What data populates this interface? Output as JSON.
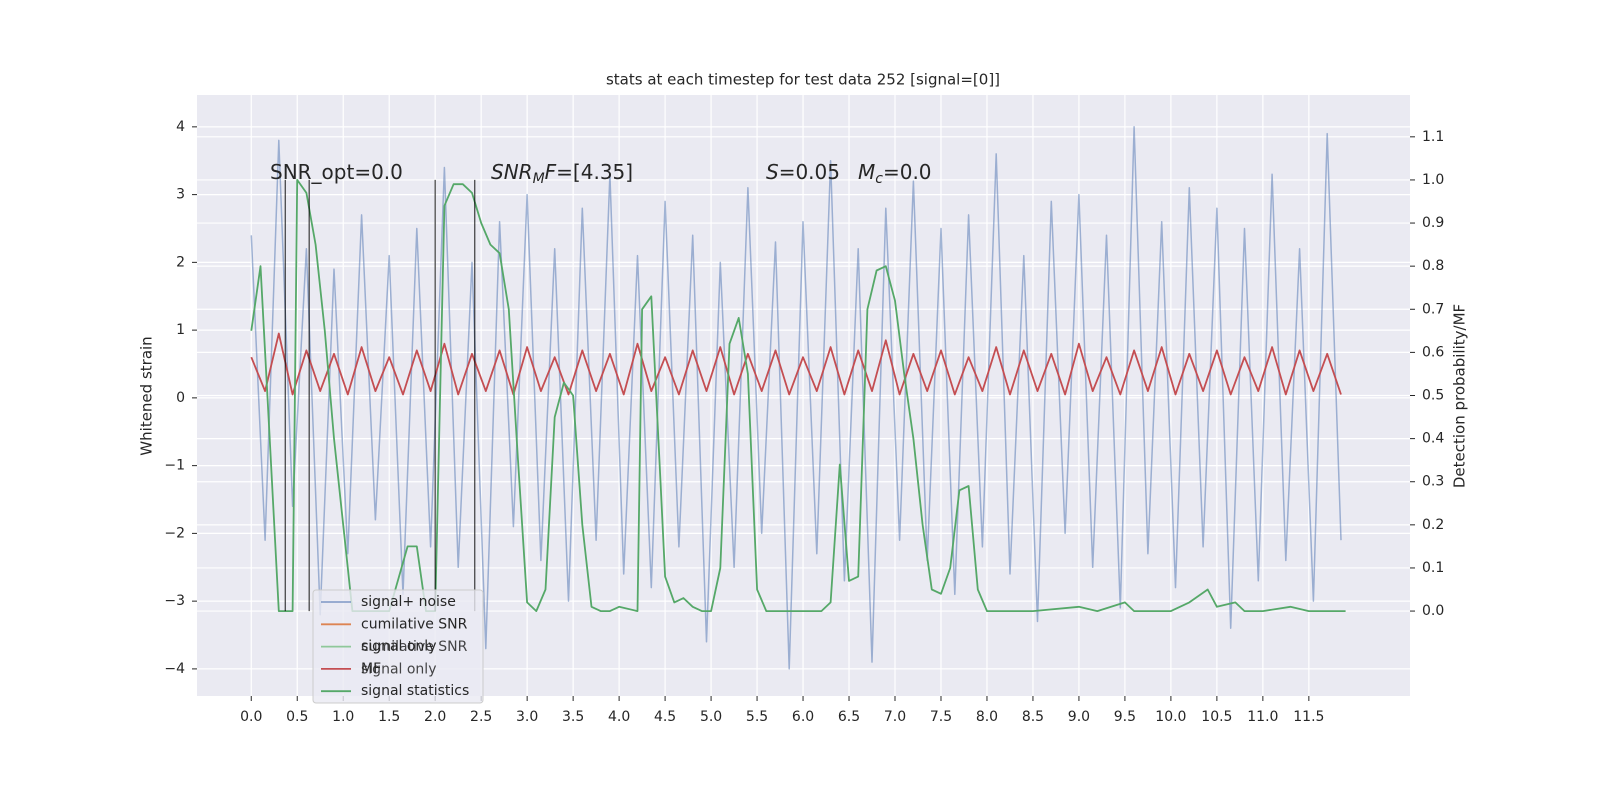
{
  "chart_data": {
    "type": "line",
    "title": "stats at each timestep for test data 252 [signal=[0]]",
    "y_label": "Whitened strain",
    "y2_label": "Detection probability/MF",
    "grid": true,
    "legend": "lower left",
    "xlim": [
      -0.59,
      12.6
    ],
    "ylim": [
      -4.4,
      4.47
    ],
    "y2lim": [
      -0.197,
      1.197
    ],
    "xticks": [
      {
        "value": 0,
        "label": "0.0"
      },
      {
        "value": 0.5,
        "label": "0.5"
      },
      {
        "value": 1,
        "label": "1.0"
      },
      {
        "value": 1.5,
        "label": "1.5"
      },
      {
        "value": 2,
        "label": "2.0"
      },
      {
        "value": 2.5,
        "label": "2.5"
      },
      {
        "value": 3,
        "label": "3.0"
      },
      {
        "value": 3.5,
        "label": "3.5"
      },
      {
        "value": 4,
        "label": "4.0"
      },
      {
        "value": 4.5,
        "label": "4.5"
      },
      {
        "value": 5,
        "label": "5.0"
      },
      {
        "value": 5.5,
        "label": "5.5"
      },
      {
        "value": 6,
        "label": "6.0"
      },
      {
        "value": 6.5,
        "label": "6.5"
      },
      {
        "value": 7,
        "label": "7.0"
      },
      {
        "value": 7.5,
        "label": "7.5"
      },
      {
        "value": 8,
        "label": "8.0"
      },
      {
        "value": 8.5,
        "label": "8.5"
      },
      {
        "value": 9,
        "label": "9.0"
      },
      {
        "value": 9.5,
        "label": "9.5"
      },
      {
        "value": 10,
        "label": "10.0"
      },
      {
        "value": 10.5,
        "label": "10.5"
      },
      {
        "value": 11,
        "label": "11.0"
      },
      {
        "value": 11.5,
        "label": "11.5"
      }
    ],
    "yticks": [
      {
        "value": -4,
        "label": "−4"
      },
      {
        "value": -3,
        "label": "−3"
      },
      {
        "value": -2,
        "label": "−2"
      },
      {
        "value": -1,
        "label": "−1"
      },
      0,
      1,
      2,
      3,
      4
    ],
    "y2ticks": [
      {
        "value": 0,
        "label": "0.0"
      },
      {
        "value": 0.1,
        "label": "0.1"
      },
      {
        "value": 0.2,
        "label": "0.2"
      },
      {
        "value": 0.3,
        "label": "0.3"
      },
      {
        "value": 0.4,
        "label": "0.4"
      },
      {
        "value": 0.5,
        "label": "0.5"
      },
      {
        "value": 0.6,
        "label": "0.6"
      },
      {
        "value": 0.7,
        "label": "0.7"
      },
      {
        "value": 0.8,
        "label": "0.8"
      },
      {
        "value": 0.9,
        "label": "0.9"
      },
      {
        "value": 1,
        "label": "1.0"
      },
      {
        "value": 1.1,
        "label": "1.1"
      }
    ],
    "vlines": [
      0.37,
      0.63,
      2.0,
      2.43
    ],
    "annotations": [
      [
        {
          "text": "SNR_opt=0.0",
          "style": "normal"
        }
      ],
      [
        {
          "text": "SNR",
          "style": "italic"
        },
        {
          "text": "M",
          "style": "sub"
        },
        {
          "text": "F",
          "style": "italic"
        },
        {
          "text": "=[4.35]",
          "style": "normal"
        }
      ],
      [
        {
          "text": "S",
          "style": "italic"
        },
        {
          "text": "=0.05",
          "style": "normal"
        }
      ],
      [
        {
          "text": "M",
          "style": "italic"
        },
        {
          "text": "c",
          "style": "sub"
        },
        {
          "text": "=0.0",
          "style": "normal"
        }
      ]
    ],
    "series": [
      {
        "name": "signal+ noise",
        "color": "#4c72b0",
        "x": [
          0,
          0.15,
          0.3,
          0.45,
          0.6,
          0.75,
          0.9,
          1.05,
          1.2,
          1.35,
          1.5,
          1.65,
          1.8,
          1.95,
          2.1,
          2.25,
          2.4,
          2.55,
          2.7,
          2.85,
          3,
          3.15,
          3.3,
          3.45,
          3.6,
          3.75,
          3.9,
          4.05,
          4.2,
          4.35,
          4.5,
          4.65,
          4.8,
          4.95,
          5.1,
          5.25,
          5.4,
          5.55,
          5.7,
          5.85,
          6,
          6.15,
          6.3,
          6.45,
          6.6,
          6.75,
          6.9,
          7.05,
          7.2,
          7.35,
          7.5,
          7.65,
          7.8,
          7.95,
          8.1,
          8.25,
          8.4,
          8.55,
          8.7,
          8.85,
          9,
          9.15,
          9.3,
          9.45,
          9.6,
          9.75,
          9.9,
          10.05,
          10.2,
          10.35,
          10.5,
          10.65,
          10.8,
          10.95,
          11.1,
          11.25,
          11.4,
          11.55,
          11.7,
          11.85
        ],
        "values": [
          2.4,
          -2.1,
          3.8,
          -1.6,
          2.2,
          -3.2,
          1.9,
          -2.3,
          2.7,
          -1.8,
          2.1,
          -2.9,
          2.5,
          -2.2,
          3.4,
          -2.5,
          2.0,
          -3.7,
          2.6,
          -1.9,
          3.0,
          -2.4,
          2.2,
          -3.0,
          2.8,
          -2.1,
          3.3,
          -2.6,
          2.1,
          -2.8,
          2.9,
          -2.2,
          2.4,
          -3.6,
          2.0,
          -2.5,
          3.1,
          -2.0,
          2.3,
          -4.0,
          2.6,
          -2.3,
          3.5,
          -2.7,
          2.2,
          -3.9,
          2.8,
          -2.1,
          3.2,
          -2.4,
          2.5,
          -2.9,
          2.7,
          -2.2,
          3.6,
          -2.6,
          2.1,
          -3.3,
          2.9,
          -2.0,
          3.0,
          -2.5,
          2.4,
          -3.1,
          4.0,
          -2.3,
          2.6,
          -2.8,
          3.1,
          -2.2,
          2.8,
          -3.4,
          2.5,
          -2.7,
          3.3,
          -2.4,
          2.2,
          -3.0,
          3.9,
          -2.1
        ]
      },
      {
        "name": "cumilative SNR",
        "color": "#dd8452",
        "x": [],
        "values": []
      },
      {
        "name": "signal only",
        "color": "#8fc89a",
        "x": [],
        "values": []
      },
      {
        "name": "MF",
        "color": "#c44e52",
        "x": [
          0,
          0.15,
          0.3,
          0.45,
          0.6,
          0.75,
          0.9,
          1.05,
          1.2,
          1.35,
          1.5,
          1.65,
          1.8,
          1.95,
          2.1,
          2.25,
          2.4,
          2.55,
          2.7,
          2.85,
          3,
          3.15,
          3.3,
          3.45,
          3.6,
          3.75,
          3.9,
          4.05,
          4.2,
          4.35,
          4.5,
          4.65,
          4.8,
          4.95,
          5.1,
          5.25,
          5.4,
          5.55,
          5.7,
          5.85,
          6,
          6.15,
          6.3,
          6.45,
          6.6,
          6.75,
          6.9,
          7.05,
          7.2,
          7.35,
          7.5,
          7.65,
          7.8,
          7.95,
          8.1,
          8.25,
          8.4,
          8.55,
          8.7,
          8.85,
          9,
          9.15,
          9.3,
          9.45,
          9.6,
          9.75,
          9.9,
          10.05,
          10.2,
          10.35,
          10.5,
          10.65,
          10.8,
          10.95,
          11.1,
          11.25,
          11.4,
          11.55,
          11.7,
          11.85
        ],
        "values": [
          0.6,
          0.1,
          0.95,
          0.05,
          0.7,
          0.1,
          0.65,
          0.05,
          0.75,
          0.1,
          0.6,
          0.05,
          0.7,
          0.1,
          0.8,
          0.05,
          0.65,
          0.1,
          0.7,
          0.05,
          0.75,
          0.1,
          0.6,
          0.05,
          0.7,
          0.1,
          0.65,
          0.05,
          0.8,
          0.1,
          0.6,
          0.05,
          0.7,
          0.1,
          0.75,
          0.05,
          0.65,
          0.1,
          0.7,
          0.05,
          0.6,
          0.1,
          0.75,
          0.05,
          0.7,
          0.1,
          0.85,
          0.05,
          0.65,
          0.1,
          0.7,
          0.05,
          0.6,
          0.1,
          0.75,
          0.05,
          0.7,
          0.1,
          0.65,
          0.05,
          0.8,
          0.1,
          0.6,
          0.05,
          0.7,
          0.1,
          0.75,
          0.05,
          0.65,
          0.1,
          0.7,
          0.05,
          0.6,
          0.1,
          0.75,
          0.05,
          0.7,
          0.1,
          0.65,
          0.05
        ]
      },
      {
        "name": "signal statistics",
        "color": "#55a868",
        "axis": "y2",
        "x": [
          0,
          0.1,
          0.2,
          0.3,
          0.45,
          0.5,
          0.6,
          0.7,
          0.8,
          0.9,
          1.0,
          1.1,
          1.5,
          1.7,
          1.8,
          1.9,
          2.0,
          2.1,
          2.2,
          2.3,
          2.4,
          2.5,
          2.6,
          2.7,
          2.8,
          2.9,
          3.0,
          3.1,
          3.2,
          3.3,
          3.4,
          3.5,
          3.6,
          3.7,
          3.8,
          3.9,
          4.0,
          4.2,
          4.25,
          4.35,
          4.45,
          4.5,
          4.6,
          4.7,
          4.8,
          4.9,
          5.0,
          5.1,
          5.2,
          5.3,
          5.4,
          5.5,
          5.6,
          6.0,
          6.2,
          6.3,
          6.4,
          6.5,
          6.6,
          6.7,
          6.8,
          6.9,
          7.0,
          7.1,
          7.2,
          7.3,
          7.4,
          7.5,
          7.6,
          7.7,
          7.8,
          7.9,
          8.0,
          8.5,
          9.0,
          9.2,
          9.5,
          9.6,
          10.0,
          10.2,
          10.4,
          10.5,
          10.7,
          10.8,
          11.0,
          11.3,
          11.5,
          11.9
        ],
        "values": [
          0.65,
          0.8,
          0.4,
          0.0,
          0.0,
          1.0,
          0.97,
          0.85,
          0.65,
          0.4,
          0.2,
          0.0,
          0.0,
          0.15,
          0.15,
          0.0,
          0.0,
          0.94,
          0.99,
          0.99,
          0.97,
          0.9,
          0.85,
          0.83,
          0.7,
          0.35,
          0.02,
          0.0,
          0.05,
          0.45,
          0.53,
          0.5,
          0.2,
          0.01,
          0.0,
          0.0,
          0.01,
          0.0,
          0.7,
          0.73,
          0.3,
          0.08,
          0.02,
          0.03,
          0.01,
          0.0,
          0.0,
          0.1,
          0.62,
          0.68,
          0.55,
          0.05,
          0.0,
          0.0,
          0.0,
          0.02,
          0.34,
          0.07,
          0.08,
          0.7,
          0.79,
          0.8,
          0.72,
          0.55,
          0.4,
          0.2,
          0.05,
          0.04,
          0.1,
          0.28,
          0.29,
          0.05,
          0.0,
          0.0,
          0.01,
          0.0,
          0.02,
          0.0,
          0.0,
          0.02,
          0.05,
          0.01,
          0.02,
          0.0,
          0.0,
          0.01,
          0.0,
          0.0
        ]
      }
    ],
    "legend2": [
      "cumilative SNR",
      "signal only"
    ]
  }
}
